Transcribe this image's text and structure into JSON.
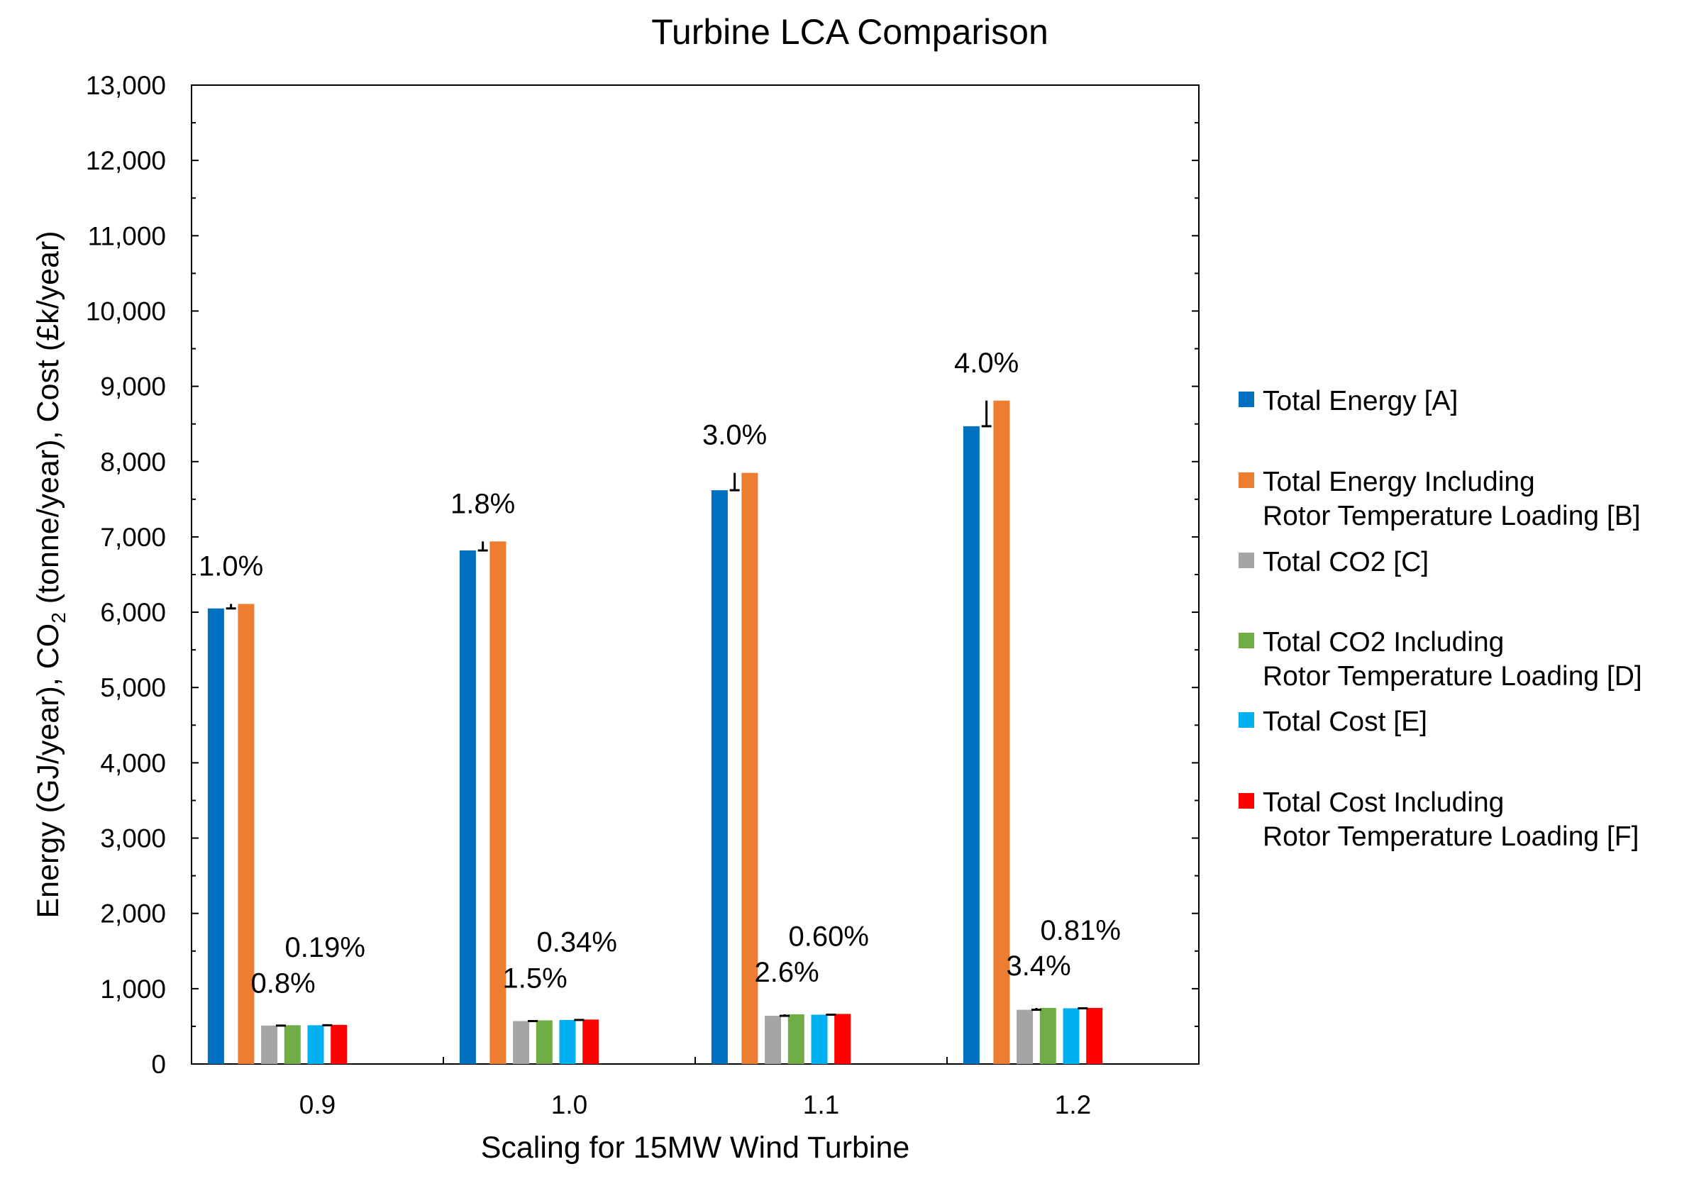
{
  "chart_data": {
    "type": "bar",
    "title": "Turbine LCA Comparison",
    "xlabel": "Scaling for 15MW Wind Turbine",
    "ylabel": {
      "prefix": "Energy (GJ/year),  CO",
      "subscript": "2",
      "suffix": " (tonne/year),  Cost (£k/year)"
    },
    "ylim": [
      0,
      13000
    ],
    "ytick_values": [
      0,
      1000,
      2000,
      3000,
      4000,
      5000,
      6000,
      7000,
      8000,
      9000,
      10000,
      11000,
      12000,
      13000
    ],
    "ytick_labels": [
      "0",
      "1,000",
      "2,000",
      "3,000",
      "4,000",
      "5,000",
      "6,000",
      "7,000",
      "8,000",
      "9,000",
      "10,000",
      "11,000",
      "12,000",
      "13,000"
    ],
    "categories": [
      "0.9",
      "1.0",
      "1.1",
      "1.2"
    ],
    "series": [
      {
        "name": "Total Energy [A]",
        "legend_lines": [
          "Total Energy [A]"
        ],
        "color": "#0070C0",
        "values": [
          6050,
          6820,
          7620,
          8470
        ]
      },
      {
        "name": "Total Energy Including Rotor Temperature Loading [B]",
        "legend_lines": [
          "Total Energy Including",
          "Rotor Temperature Loading [B]"
        ],
        "color": "#ED7D31",
        "values": [
          6110,
          6940,
          7850,
          8810
        ]
      },
      {
        "name": "Total CO2 [C]",
        "legend_lines": [
          "Total CO2 [C]"
        ],
        "color": "#A5A5A5",
        "values": [
          510,
          570,
          640,
          720
        ]
      },
      {
        "name": "Total CO2 Including Rotor Temperature Loading [D]",
        "legend_lines": [
          "Total CO2 Including",
          "Rotor Temperature Loading [D]"
        ],
        "color": "#70AD47",
        "values": [
          515,
          580,
          660,
          745
        ]
      },
      {
        "name": "Total Cost [E]",
        "legend_lines": [
          "Total Cost [E]"
        ],
        "color": "#00B0F0",
        "values": [
          515,
          585,
          655,
          740
        ]
      },
      {
        "name": "Total Cost Including Rotor Temperature Loading [F]",
        "legend_lines": [
          "Total Cost Including",
          "Rotor Temperature Loading [F]"
        ],
        "color": "#FF0000",
        "values": [
          520,
          590,
          665,
          745
        ]
      }
    ],
    "annotations": {
      "energy_increase": [
        "1.0%",
        "1.8%",
        "3.0%",
        "4.0%"
      ],
      "co2_increase": [
        "0.8%",
        "1.5%",
        "2.6%",
        "3.4%"
      ],
      "cost_increase": [
        "0.19%",
        "0.34%",
        "0.60%",
        "0.81%"
      ]
    },
    "grid": false,
    "legend_position": "right"
  }
}
